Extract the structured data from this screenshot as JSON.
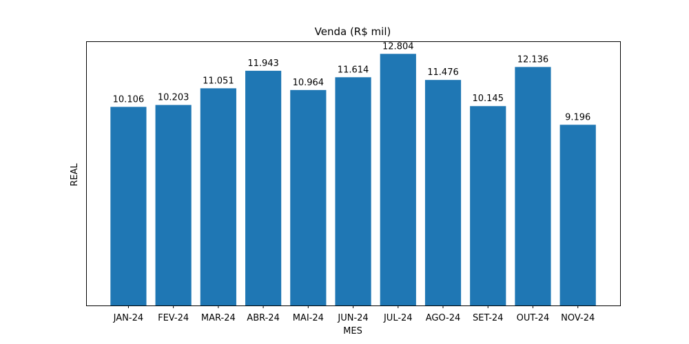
{
  "chart_data": {
    "type": "bar",
    "title": "Venda (R$ mil)",
    "xlabel": "MES",
    "ylabel": "REAL",
    "categories": [
      "JAN-24",
      "FEV-24",
      "MAR-24",
      "ABR-24",
      "MAI-24",
      "JUN-24",
      "JUL-24",
      "AGO-24",
      "SET-24",
      "OUT-24",
      "NOV-24"
    ],
    "values": [
      10.106,
      10.203,
      11.051,
      11.943,
      10.964,
      11.614,
      12.804,
      11.476,
      10.145,
      12.136,
      9.196
    ],
    "value_labels": [
      "10.106",
      "10.203",
      "11.051",
      "11.943",
      "10.964",
      "11.614",
      "12.804",
      "11.476",
      "10.145",
      "12.136",
      "9.196"
    ],
    "ylim": [
      0,
      13.444
    ],
    "y_ticks_visible": false,
    "grid": false,
    "colors": {
      "bar": "#1f77b4"
    }
  }
}
